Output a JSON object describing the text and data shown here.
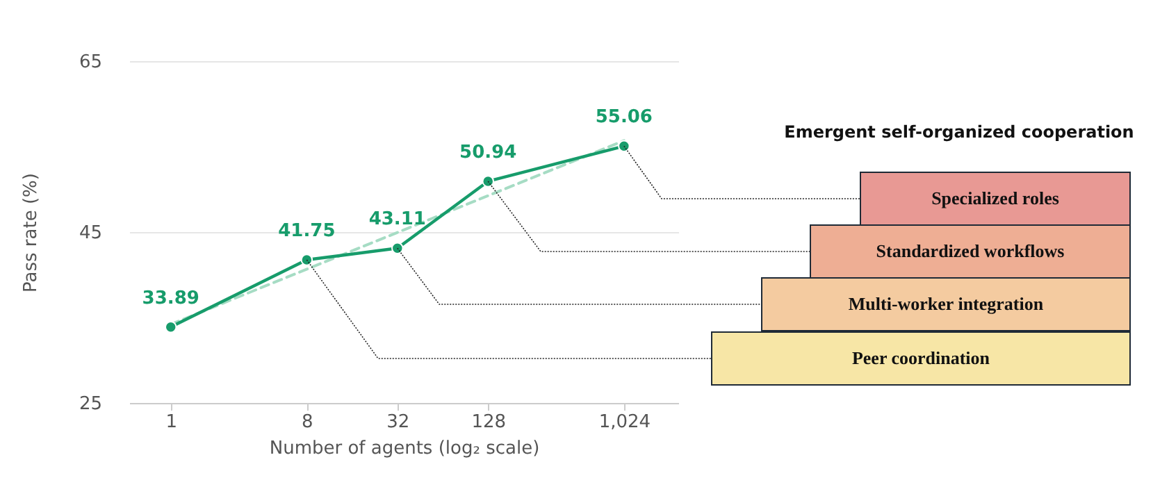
{
  "chart_data": {
    "type": "line",
    "xlabel": "Number of agents (log₂ scale)",
    "ylabel": "Pass rate (%)",
    "x": [
      1,
      8,
      32,
      128,
      1024
    ],
    "series": [
      {
        "color": "#a6dcc4",
        "line_style": "dashed",
        "marker": "none",
        "x": [
          1,
          1024
        ],
        "values": [
          34.2,
          55.7
        ]
      },
      {
        "color": "#179c6b",
        "line_style": "solid",
        "marker": "circle",
        "data_labels": true,
        "values": [
          33.89,
          41.75,
          43.11,
          50.94,
          55.06
        ]
      }
    ],
    "log": "x",
    "xlim": [
      0.53,
      2350
    ],
    "xticks": [
      1,
      8,
      32,
      128,
      {
        "value": 1024,
        "label": "1,024"
      }
    ],
    "ylim": [
      25,
      65
    ],
    "yticks": [
      25,
      45,
      65
    ],
    "grid": "y",
    "annotations": [
      "Emergent self-organized cooperation",
      "Specialized roles",
      "Standardized workflows",
      "Multi-worker integration",
      "Peer coordination"
    ]
  }
}
